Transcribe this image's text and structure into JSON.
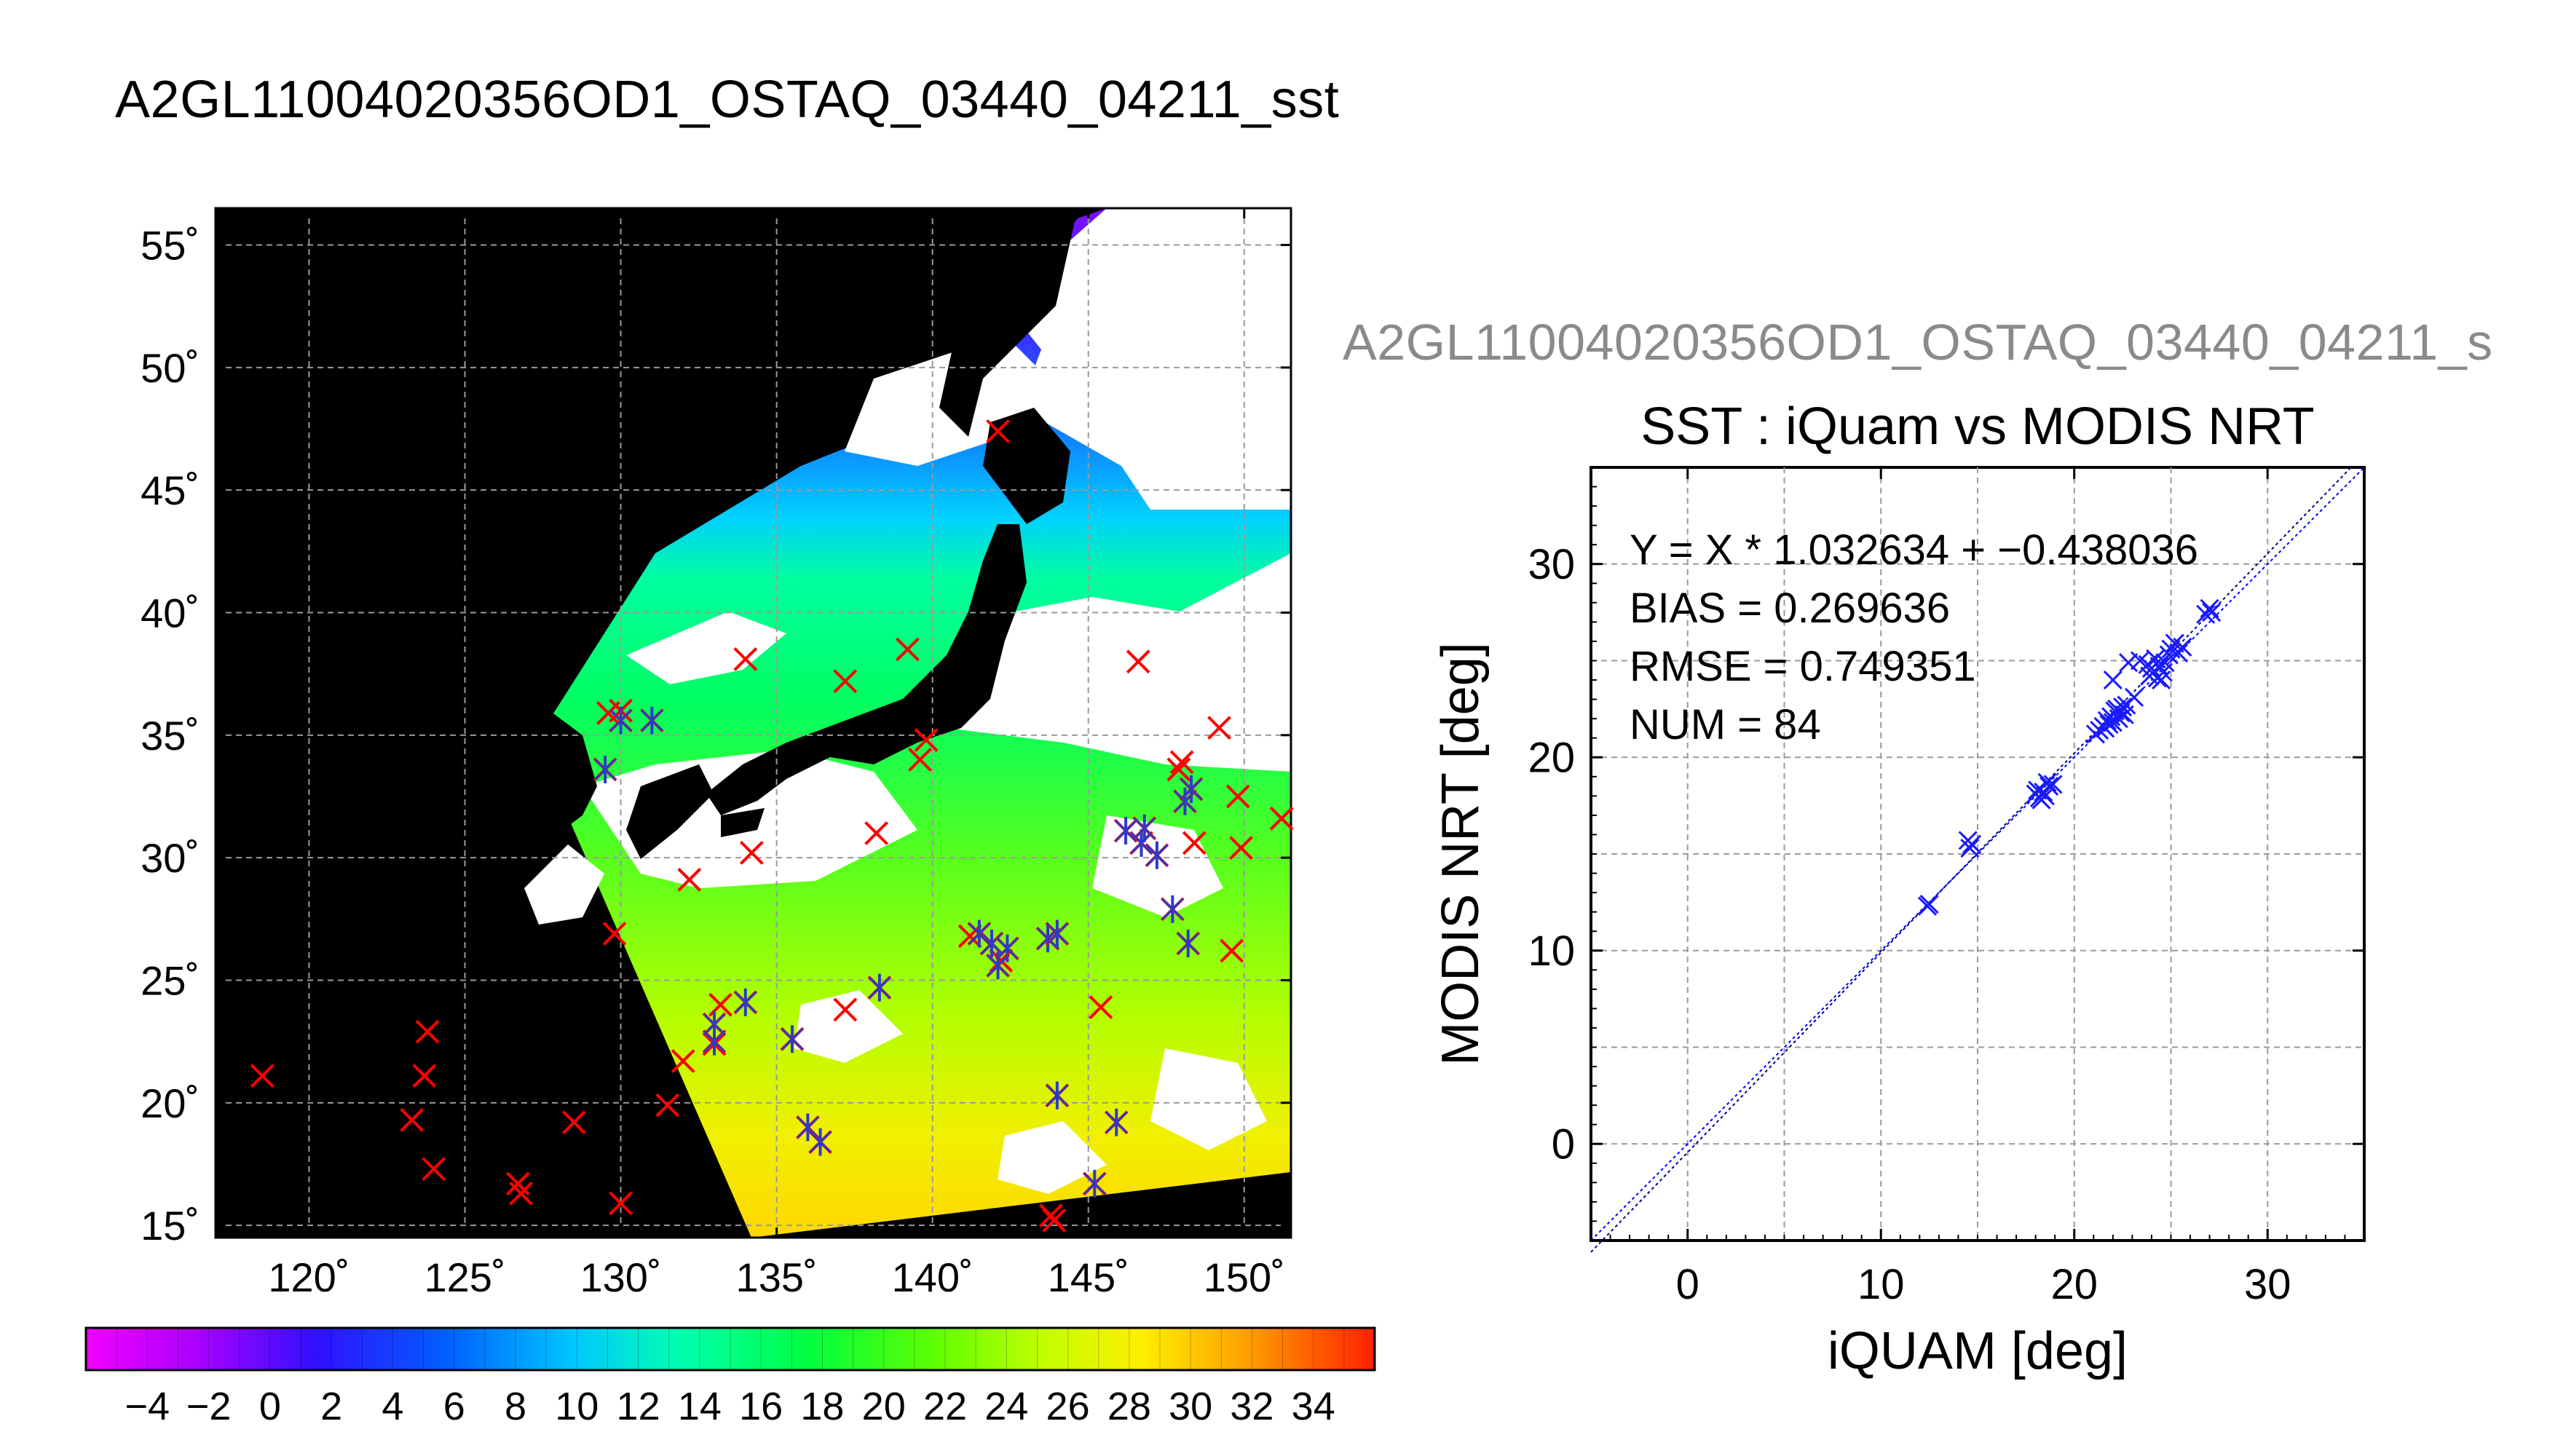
{
  "page_title": "A2GL11004020356OD1_OSTAQ_03440_04211_sst",
  "scatter_label": "A2GL11004020356OD1_OSTAQ_03440_04211_s",
  "colors": {
    "land_and_nodata": "#000000",
    "clouds": "#ffffff",
    "buoy_marker": "#ff0000",
    "matchup_marker": "#2a3cc8",
    "scatter_marker": "#1a1aff",
    "fit_line": "#000080",
    "identity_line": "#0000ff"
  },
  "chart_data": [
    {
      "type": "heatmap",
      "title": "",
      "xlabel": "",
      "ylabel": "",
      "x_ticks": [
        "120˚",
        "125˚",
        "130˚",
        "135˚",
        "140˚",
        "145˚",
        "150˚"
      ],
      "x_tick_values": [
        120,
        125,
        130,
        135,
        140,
        145,
        150
      ],
      "y_ticks": [
        "15˚",
        "20˚",
        "25˚",
        "30˚",
        "35˚",
        "40˚",
        "45˚",
        "50˚",
        "55˚"
      ],
      "y_tick_values": [
        15,
        20,
        25,
        30,
        35,
        40,
        45,
        50,
        55
      ],
      "xlim": [
        117,
        151.5
      ],
      "ylim": [
        14.5,
        56.5
      ],
      "grid": true,
      "colorbar": {
        "ticks": [
          "−4",
          "−2",
          "0",
          "2",
          "4",
          "6",
          "8",
          "10",
          "12",
          "14",
          "16",
          "18",
          "20",
          "22",
          "24",
          "26",
          "28",
          "30",
          "32",
          "34"
        ],
        "range": [
          -6,
          34
        ]
      },
      "buoy_points_red_x": [
        [
          118.5,
          21.1
        ],
        [
          123.8,
          22.9
        ],
        [
          123.7,
          21.1
        ],
        [
          123.3,
          19.3
        ],
        [
          124.0,
          17.3
        ],
        [
          126.7,
          16.7
        ],
        [
          126.8,
          16.3
        ],
        [
          128.5,
          19.2
        ],
        [
          130.0,
          15.9
        ],
        [
          129.8,
          26.9
        ],
        [
          131.5,
          19.9
        ],
        [
          132.0,
          21.7
        ],
        [
          132.2,
          29.1
        ],
        [
          134.2,
          30.2
        ],
        [
          133.2,
          24.0
        ],
        [
          129.6,
          35.9
        ],
        [
          130.0,
          36.0
        ],
        [
          134.0,
          38.1
        ],
        [
          139.2,
          38.5
        ],
        [
          139.8,
          34.8
        ],
        [
          139.6,
          34.0
        ],
        [
          138.2,
          31.0
        ],
        [
          137.2,
          23.8
        ],
        [
          146.6,
          38.0
        ],
        [
          145.4,
          23.9
        ],
        [
          143.8,
          15.4
        ],
        [
          143.9,
          15.2
        ],
        [
          148.4,
          30.6
        ],
        [
          149.2,
          35.3
        ],
        [
          149.8,
          32.5
        ],
        [
          149.9,
          30.4
        ],
        [
          151.2,
          31.6
        ],
        [
          149.6,
          26.2
        ],
        [
          148.0,
          33.9
        ],
        [
          147.9,
          33.6
        ],
        [
          142.1,
          47.4
        ],
        [
          137.2,
          37.2
        ],
        [
          141.2,
          26.8
        ],
        [
          142.2,
          25.8
        ],
        [
          133.0,
          22.4
        ]
      ],
      "matchup_points_star": [
        [
          129.5,
          33.6
        ],
        [
          130.0,
          35.6
        ],
        [
          131.0,
          35.6
        ],
        [
          133.0,
          23.2
        ],
        [
          133.0,
          22.5
        ],
        [
          134.0,
          24.1
        ],
        [
          135.5,
          22.6
        ],
        [
          136.0,
          19.0
        ],
        [
          136.4,
          18.4
        ],
        [
          138.3,
          24.7
        ],
        [
          141.5,
          26.9
        ],
        [
          141.9,
          26.5
        ],
        [
          142.4,
          26.3
        ],
        [
          142.1,
          25.6
        ],
        [
          143.7,
          26.7
        ],
        [
          144.0,
          26.9
        ],
        [
          144.0,
          20.3
        ],
        [
          145.2,
          16.7
        ],
        [
          145.9,
          19.2
        ],
        [
          146.2,
          31.1
        ],
        [
          146.7,
          30.6
        ],
        [
          147.2,
          30.1
        ],
        [
          147.7,
          27.9
        ],
        [
          148.2,
          26.5
        ],
        [
          148.3,
          32.8
        ],
        [
          148.1,
          32.3
        ],
        [
          146.8,
          31.2
        ]
      ]
    },
    {
      "type": "scatter",
      "title": "SST : iQuam vs MODIS NRT",
      "xlabel": "iQUAM [deg]",
      "ylabel": "MODIS NRT [deg]",
      "xlim": [
        -5,
        35
      ],
      "ylim": [
        -5,
        35
      ],
      "x_ticks": [
        0,
        10,
        20,
        30
      ],
      "y_ticks": [
        0,
        10,
        20,
        30
      ],
      "grid": true,
      "annotations": [
        "Y = X * 1.032634 + −0.438036",
        "BIAS = 0.269636",
        "RMSE = 0.749351",
        "NUM = 84"
      ],
      "fit": {
        "slope": 1.032634,
        "intercept": -0.438036
      },
      "series": [
        {
          "x": [
            12.4,
            12.5,
            14.6,
            14.7,
            14.5,
            18.0,
            18.2,
            18.4,
            18.5,
            18.7,
            18.1,
            18.3,
            18.6,
            21.1,
            21.3,
            21.5,
            21.7,
            21.9,
            22.0,
            22.1,
            22.3,
            22.4,
            22.5,
            22.6,
            21.8,
            22.2,
            22.8,
            23.1,
            23.4,
            23.8,
            24.0,
            24.2,
            24.4,
            24.5,
            24.7,
            24.9,
            25.0,
            25.2,
            25.4,
            25.6,
            26.8,
            27.0,
            27.1,
            24.6,
            22.0,
            23.9,
            24.3,
            21.6,
            22.7,
            18.9
          ],
          "y": [
            12.3,
            12.4,
            15.3,
            15.5,
            15.7,
            18.1,
            17.9,
            18.2,
            18.0,
            18.5,
            18.3,
            17.8,
            18.7,
            21.2,
            21.4,
            21.6,
            21.9,
            22.1,
            21.8,
            22.4,
            22.0,
            22.3,
            22.6,
            22.2,
            21.7,
            22.5,
            24.9,
            23.1,
            25.0,
            24.8,
            24.6,
            25.1,
            24.7,
            24.0,
            24.9,
            25.3,
            25.6,
            25.9,
            25.4,
            25.7,
            27.4,
            27.7,
            27.5,
            24.4,
            24.0,
            24.2,
            24.1,
            21.5,
            22.7,
            18.6
          ]
        }
      ]
    }
  ]
}
